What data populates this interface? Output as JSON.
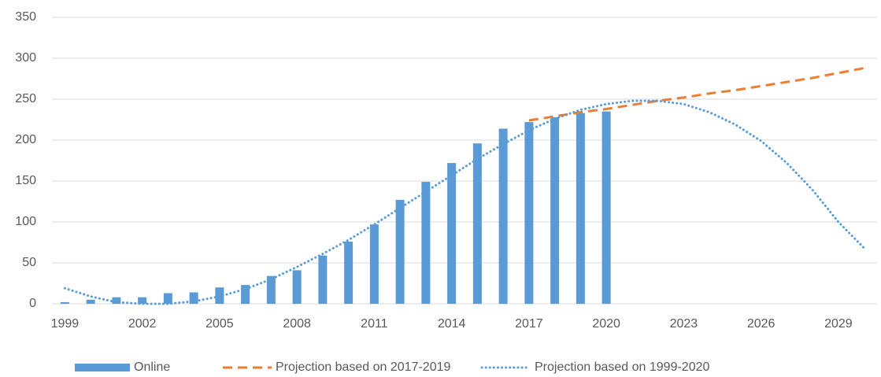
{
  "chart_data": {
    "type": "bar",
    "categories": [
      "1999",
      null,
      null,
      "2002",
      null,
      null,
      "2005",
      null,
      null,
      "2008",
      null,
      null,
      "2011",
      null,
      null,
      "2014",
      null,
      null,
      "2017",
      null,
      null,
      "2020",
      null,
      null,
      "2023",
      null,
      null,
      "2026",
      null,
      null,
      "2029",
      null
    ],
    "series": [
      {
        "name": "Online",
        "type": "bar",
        "color": "#5b9bd5",
        "values": [
          2,
          5,
          8,
          8,
          13,
          14,
          20,
          23,
          34,
          41,
          59,
          76,
          97,
          127,
          149,
          172,
          196,
          214,
          222,
          228,
          233,
          235,
          null,
          null,
          null,
          null,
          null,
          null,
          null,
          null,
          null,
          null
        ]
      },
      {
        "name": "Projection based on 2017-2019",
        "type": "dashed",
        "color": "#ed7d31",
        "values": [
          null,
          null,
          null,
          null,
          null,
          null,
          null,
          null,
          null,
          null,
          null,
          null,
          null,
          null,
          null,
          null,
          null,
          null,
          224,
          229,
          234,
          238,
          243,
          248,
          252,
          257,
          261,
          266,
          271,
          276,
          282,
          288
        ]
      },
      {
        "name": "Projection based on 1999-2020",
        "type": "dotted",
        "color": "#5b9bd5",
        "values": [
          19,
          9,
          2,
          0,
          0,
          3,
          9,
          18,
          30,
          45,
          61,
          78,
          97,
          117,
          137,
          157,
          177,
          195,
          212,
          226,
          237,
          244,
          248,
          248,
          244,
          234,
          219,
          199,
          172,
          139,
          100,
          68
        ]
      }
    ],
    "ylim": [
      0,
      350
    ],
    "yticks": [
      0,
      50,
      100,
      150,
      200,
      250,
      300,
      350
    ],
    "grid": true,
    "legend": "bottom"
  }
}
